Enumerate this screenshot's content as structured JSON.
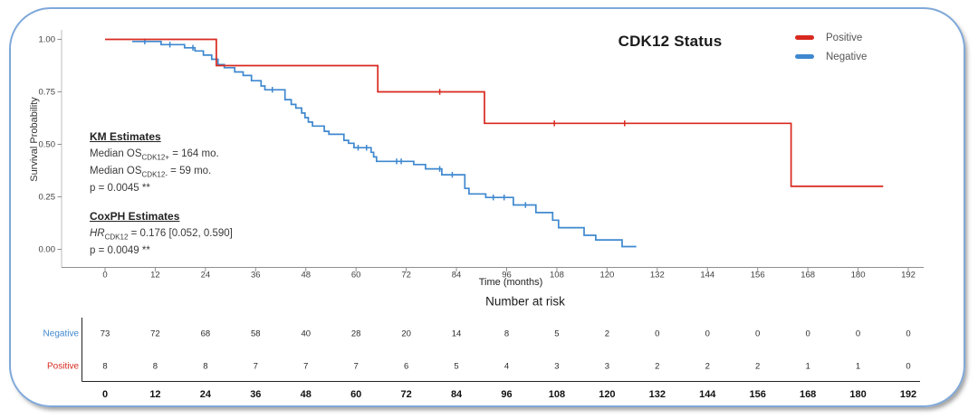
{
  "title": "CDK12 Status",
  "axes": {
    "ylabel": "Survival Probability",
    "xlabel": "Time (months)",
    "y_ticks": [
      "1.00",
      "0.75",
      "0.50",
      "0.25",
      "0.00"
    ],
    "y_tick_values": [
      1.0,
      0.75,
      0.5,
      0.25,
      0.0
    ],
    "x_ticks": [
      0,
      12,
      24,
      36,
      48,
      60,
      72,
      84,
      96,
      108,
      120,
      132,
      144,
      156,
      168,
      180,
      192
    ]
  },
  "legend": {
    "items": [
      {
        "label": "Positive",
        "color": "#d8291f"
      },
      {
        "label": "Negative",
        "color": "#3f88cf"
      }
    ]
  },
  "annotations": {
    "km": {
      "heading": "KM Estimates",
      "line1": {
        "prefix": "Median OS",
        "sub": "CDK12+",
        "suffix": " = 164 mo."
      },
      "line2": {
        "prefix": "Median OS",
        "sub": "CDK12-",
        "suffix": " = 59 mo."
      },
      "pvalue": "p = 0.0045 **"
    },
    "cox": {
      "heading": "CoxPH Estimates",
      "line1": {
        "prefix": "HR",
        "sub": "CDK12",
        "suffix": " = 0.176 [0.052, 0.590]"
      },
      "pvalue": "p = 0.0049 **"
    }
  },
  "risk_table": {
    "heading": "Number at risk",
    "x_ticks": [
      0,
      12,
      24,
      36,
      48,
      60,
      72,
      84,
      96,
      108,
      120,
      132,
      144,
      156,
      168,
      180,
      192
    ],
    "rows": [
      {
        "label": "Negative",
        "color": "#3f88cf",
        "counts": [
          73,
          72,
          68,
          58,
          40,
          28,
          20,
          14,
          8,
          5,
          2,
          0,
          0,
          0,
          0,
          0,
          0
        ]
      },
      {
        "label": "Positive",
        "color": "#d8291f",
        "counts": [
          8,
          8,
          8,
          7,
          7,
          7,
          6,
          5,
          4,
          3,
          3,
          2,
          2,
          2,
          1,
          1,
          0
        ]
      }
    ]
  },
  "chart_data": {
    "type": "line",
    "subtype": "kaplan-meier-step",
    "title": "CDK12 Status",
    "xlabel": "Time (months)",
    "ylabel": "Survival Probability",
    "xlim": [
      0,
      192
    ],
    "ylim": [
      0,
      1
    ],
    "x_tick_interval": 12,
    "grid": false,
    "legend_position": "top-right",
    "series": [
      {
        "name": "Positive",
        "color": "#d8291f",
        "steps": [
          [
            0,
            1.0
          ],
          [
            26.6,
            0.875
          ],
          [
            65.2,
            0.75
          ],
          [
            90.7,
            0.6
          ],
          [
            164,
            0.3
          ],
          [
            186,
            0.3
          ]
        ],
        "censor_marks": [
          80,
          107.4,
          124.2
        ],
        "median_months": 164
      },
      {
        "name": "Negative",
        "color": "#3f88cf",
        "steps": [
          [
            6.5,
            0.99
          ],
          [
            13.4,
            0.975
          ],
          [
            19,
            0.96
          ],
          [
            21.5,
            0.945
          ],
          [
            23.5,
            0.925
          ],
          [
            25.5,
            0.905
          ],
          [
            27,
            0.88
          ],
          [
            28.5,
            0.865
          ],
          [
            31,
            0.845
          ],
          [
            33,
            0.828
          ],
          [
            35,
            0.803
          ],
          [
            37.3,
            0.778
          ],
          [
            38.2,
            0.76
          ],
          [
            43,
            0.713
          ],
          [
            44.5,
            0.69
          ],
          [
            45.6,
            0.673
          ],
          [
            47,
            0.649
          ],
          [
            47.8,
            0.627
          ],
          [
            48.6,
            0.606
          ],
          [
            49.6,
            0.587
          ],
          [
            52.4,
            0.562
          ],
          [
            53.5,
            0.548
          ],
          [
            57.1,
            0.519
          ],
          [
            58.2,
            0.505
          ],
          [
            59.5,
            0.484
          ],
          [
            63.6,
            0.462
          ],
          [
            64.2,
            0.44
          ],
          [
            64.9,
            0.419
          ],
          [
            73.8,
            0.404
          ],
          [
            76.6,
            0.383
          ],
          [
            80.5,
            0.355
          ],
          [
            86,
            0.29
          ],
          [
            87,
            0.264
          ],
          [
            91,
            0.247
          ],
          [
            97.6,
            0.211
          ],
          [
            103,
            0.175
          ],
          [
            107,
            0.139
          ],
          [
            108.4,
            0.103
          ],
          [
            114.5,
            0.067
          ],
          [
            117.3,
            0.045
          ],
          [
            123.6,
            0.013
          ],
          [
            127,
            0.013
          ]
        ],
        "censor_marks": [
          9.5,
          15.5,
          21,
          40,
          60.5,
          62.5,
          69.7,
          70.8,
          80,
          83,
          92.8,
          95.4,
          100.5
        ],
        "median_months": 59
      }
    ]
  },
  "colors": {
    "positive": "#d8291f",
    "negative": "#3f88cf",
    "axis_line": "#8f8f8f",
    "y_axis_line": "#bdbdbd",
    "table_line": "#222222",
    "card_border": "#7fa8d9"
  }
}
